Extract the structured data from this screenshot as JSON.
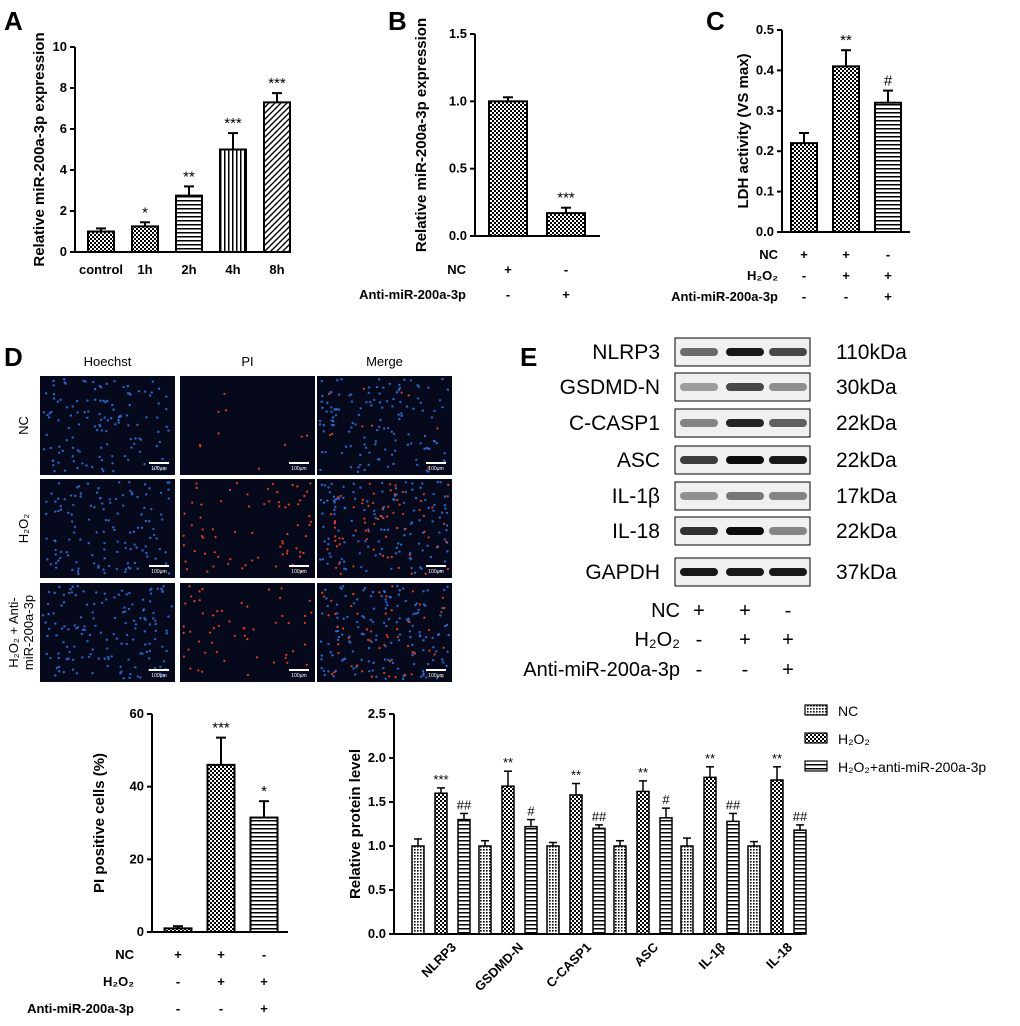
{
  "colors": {
    "ink": "#000000",
    "blue_cell": "#2f6fd6",
    "red_cell": "#e0401c",
    "micro_bg": "#06091c"
  },
  "panels": {
    "A": "A",
    "B": "B",
    "C": "C",
    "D": "D",
    "E": "E"
  },
  "sig": {
    "one": "*",
    "two": "**",
    "three": "***",
    "h1": "#",
    "h2": "##"
  },
  "treatment_labels": {
    "nc": "NC",
    "h2o2": "H₂O₂",
    "anti": "Anti-miR-200a-3p",
    "plus": "+",
    "minus": "-"
  },
  "microscopy": {
    "columns": [
      "Hoechst",
      "PI",
      "Merge"
    ],
    "rows": [
      "NC",
      "H₂O₂",
      "H₂O₂ + Anti-miR-200a-3p"
    ],
    "scale_bar": "100μm"
  },
  "western": {
    "proteins": [
      {
        "name": "NLRP3",
        "size": "110kDa"
      },
      {
        "name": "GSDMD-N",
        "size": "30kDa"
      },
      {
        "name": "C-CASP1",
        "size": "22kDa"
      },
      {
        "name": "ASC",
        "size": "22kDa"
      },
      {
        "name": "IL-1β",
        "size": "17kDa"
      },
      {
        "name": "IL-18",
        "size": "22kDa"
      },
      {
        "name": "GAPDH",
        "size": "37kDa"
      }
    ],
    "conditions": [
      {
        "label": "NC",
        "signs": [
          "+",
          "+",
          "-"
        ]
      },
      {
        "label": "H₂O₂",
        "signs": [
          "-",
          "+",
          "+"
        ]
      },
      {
        "label": "Anti-miR-200a-3p",
        "signs": [
          "-",
          "-",
          "+"
        ]
      }
    ]
  },
  "chart_data": [
    {
      "id": "A",
      "type": "bar",
      "ylabel": "Relative miR-200a-3p expression",
      "ylim": [
        0,
        10
      ],
      "yticks": [
        0,
        2,
        4,
        6,
        8,
        10
      ],
      "categories": [
        "control",
        "1h",
        "2h",
        "4h",
        "8h"
      ],
      "values": [
        1.0,
        1.25,
        2.75,
        5.0,
        7.3
      ],
      "errors": [
        0.15,
        0.2,
        0.45,
        0.8,
        0.45
      ],
      "sig": [
        "",
        "*",
        "**",
        "***",
        "***"
      ],
      "patterns": [
        "checker",
        "checker",
        "hline",
        "vline",
        "diag"
      ]
    },
    {
      "id": "B",
      "type": "bar",
      "ylabel": "Relative miR-200a-3p expression",
      "ylim": [
        0,
        1.5
      ],
      "yticks": [
        0.0,
        0.5,
        1.0,
        1.5
      ],
      "values": [
        1.0,
        0.17
      ],
      "errors": [
        0.03,
        0.04
      ],
      "sig": [
        "",
        "***"
      ],
      "patterns": [
        "checker",
        "checker"
      ],
      "rows": [
        {
          "label": "NC",
          "signs": [
            "+",
            "-"
          ]
        },
        {
          "label": "Anti-miR-200a-3p",
          "signs": [
            "-",
            "+"
          ]
        }
      ]
    },
    {
      "id": "C",
      "type": "bar",
      "ylabel": "LDH activity (VS max)",
      "ylim": [
        0,
        0.5
      ],
      "yticks": [
        0.0,
        0.1,
        0.2,
        0.3,
        0.4,
        0.5
      ],
      "values": [
        0.22,
        0.41,
        0.32
      ],
      "errors": [
        0.025,
        0.04,
        0.03
      ],
      "sig": [
        "",
        "**",
        "#"
      ],
      "patterns": [
        "checker",
        "checker",
        "hline"
      ],
      "rows": [
        {
          "label": "NC",
          "signs": [
            "+",
            "+",
            "-"
          ]
        },
        {
          "label": "H₂O₂",
          "signs": [
            "-",
            "+",
            "+"
          ]
        },
        {
          "label": "Anti-miR-200a-3p",
          "signs": [
            "-",
            "-",
            "+"
          ]
        }
      ]
    },
    {
      "id": "D",
      "type": "bar",
      "ylabel": "PI positive cells (%)",
      "ylim": [
        0,
        60
      ],
      "yticks": [
        0,
        20,
        40,
        60
      ],
      "values": [
        1.0,
        46.0,
        31.5
      ],
      "errors": [
        0.6,
        7.5,
        4.5
      ],
      "sig": [
        "",
        "***",
        "*"
      ],
      "patterns": [
        "checker",
        "checker",
        "hline"
      ],
      "rows": [
        {
          "label": "NC",
          "signs": [
            "+",
            "+",
            "-"
          ]
        },
        {
          "label": "H₂O₂",
          "signs": [
            "-",
            "+",
            "+"
          ]
        },
        {
          "label": "Anti-miR-200a-3p",
          "signs": [
            "-",
            "-",
            "+"
          ]
        }
      ]
    },
    {
      "id": "E",
      "type": "bar",
      "ylabel": "Relative protein level",
      "ylim": [
        0,
        2.5
      ],
      "yticks": [
        0.0,
        0.5,
        1.0,
        1.5,
        2.0,
        2.5
      ],
      "categories": [
        "NLRP3",
        "GSDMD-N",
        "C-CASP1",
        "ASC",
        "IL-1β",
        "IL-18"
      ],
      "legend": [
        "NC",
        "H₂O₂",
        "H₂O₂+anti-miR-200a-3p"
      ],
      "series": [
        {
          "name": "NC",
          "pattern": "dots",
          "values": [
            1.0,
            1.0,
            1.0,
            1.0,
            1.0,
            1.0
          ],
          "errors": [
            0.08,
            0.06,
            0.04,
            0.06,
            0.09,
            0.05
          ],
          "sig": [
            "",
            "",
            "",
            "",
            "",
            ""
          ]
        },
        {
          "name": "H₂O₂",
          "pattern": "checker",
          "values": [
            1.6,
            1.68,
            1.58,
            1.62,
            1.78,
            1.75
          ],
          "errors": [
            0.06,
            0.17,
            0.13,
            0.12,
            0.12,
            0.15
          ],
          "sig": [
            "***",
            "**",
            "**",
            "**",
            "**",
            "**"
          ]
        },
        {
          "name": "H₂O₂+anti-miR-200a-3p",
          "pattern": "hline",
          "values": [
            1.3,
            1.22,
            1.2,
            1.32,
            1.28,
            1.18
          ],
          "errors": [
            0.07,
            0.08,
            0.04,
            0.11,
            0.09,
            0.06
          ],
          "sig": [
            "##",
            "#",
            "##",
            "#",
            "##",
            "##"
          ]
        }
      ]
    }
  ]
}
